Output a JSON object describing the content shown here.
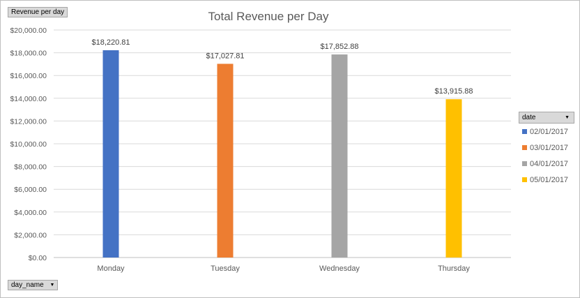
{
  "field_buttons": {
    "values": "Revenue per day",
    "axis": "day_name",
    "legend": "date"
  },
  "chart_data": {
    "type": "bar",
    "title": "Total Revenue per Day",
    "xlabel": "",
    "ylabel": "",
    "categories": [
      "Monday",
      "Tuesday",
      "Wednesday",
      "Thursday"
    ],
    "ylim": [
      0,
      20000
    ],
    "yticks": [
      "$0.00",
      "$2,000.00",
      "$4,000.00",
      "$6,000.00",
      "$8,000.00",
      "$10,000.00",
      "$12,000.00",
      "$14,000.00",
      "$16,000.00",
      "$18,000.00",
      "$20,000.00"
    ],
    "grid": true,
    "legend_position": "right",
    "series": [
      {
        "name": "02/01/2017",
        "color": "#4472c4",
        "values": [
          18220.81,
          null,
          null,
          null
        ],
        "labels": [
          "$18,220.81",
          "",
          "",
          ""
        ]
      },
      {
        "name": "03/01/2017",
        "color": "#ed7d31",
        "values": [
          null,
          17027.81,
          null,
          null
        ],
        "labels": [
          "",
          "$17,027.81",
          "",
          ""
        ]
      },
      {
        "name": "04/01/2017",
        "color": "#a5a5a5",
        "values": [
          null,
          null,
          17852.88,
          null
        ],
        "labels": [
          "",
          "",
          "$17,852.88",
          ""
        ]
      },
      {
        "name": "05/01/2017",
        "color": "#ffc000",
        "values": [
          null,
          null,
          null,
          13915.88
        ],
        "labels": [
          "",
          "",
          "",
          "$13,915.88"
        ]
      }
    ]
  }
}
